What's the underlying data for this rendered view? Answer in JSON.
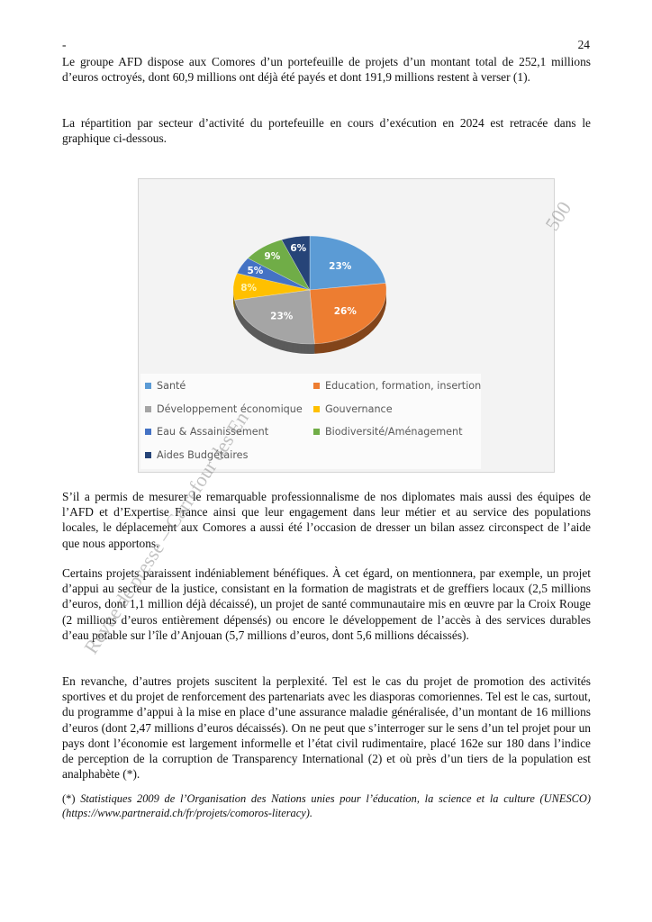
{
  "header": {
    "dash": "-",
    "page_number": "24"
  },
  "paragraphs": [
    "Le groupe AFD dispose aux Comores d’un portefeuille de projets d’un montant total de 252,1 millions d’euros octroyés, dont 60,9 millions ont déjà été payés et dont 191,9 millions restent à verser (1).",
    "La répartition par secteur d’activité du portefeuille en cours d’exécution en 2024 est retracée dans le graphique ci-dessous.",
    "S’il a permis de mesurer le remarquable professionnalisme de nos diplomates mais aussi des équipes de l’AFD et d’Expertise France ainsi que leur engagement dans leur métier et au service des populations locales, le déplacement aux Comores a aussi été l’occasion de dresser un bilan assez circonspect de l’aide que nous apportons.",
    "Certains projets paraissent indéniablement bénéfiques. À cet égard, on mentionnera, par exemple, un projet d’appui au secteur de la justice, consistant en la formation de magistrats et de greffiers locaux (2,5 millions d’euros, dont 1,1 million déjà décaissé), un projet de santé communautaire mis en œuvre par la Croix Rouge (2 millions d’euros entièrement dépensés) ou encore le développement de l’accès à des services durables d’eau potable sur l’île d’Anjouan (5,7 millions d’euros, dont 5,6 millions décaissés).",
    "En revanche, d’autres projets suscitent la perplexité. Tel est le cas du projet de promotion des activités sportives et du projet de renforcement des partenariats avec les diasporas comoriennes. Tel est le cas, surtout, du programme d’appui à la mise en place d’une assurance maladie généralisée, d’un montant de 16 millions d’euros (dont 2,47 millions d’euros décaissés). On ne peut que s’interroger sur le sens d’un tel projet pour un pays dont l’économie est largement informelle et l’état civil rudimentaire, placé 162e sur 180 dans l’indice de perception de la corruption de Transparency International (2) et où près d’un tiers de la population est analphabète (*)."
  ],
  "footnote": {
    "marker": "(*)",
    "text": "Statistiques 2009 de l’Organisation des Nations unies pour l’éducation, la science et la culture (UNESCO) (https://www.partneraid.ch/fr/projets/comoros-literacy)."
  },
  "watermark": {
    "text": "Revue de presse – Carrefour des En",
    "corner_text": "500"
  },
  "chart_data": {
    "type": "pie",
    "style": "3d",
    "legend_placement": "bottom",
    "categories": [
      "Santé",
      "Education, formation, insertion",
      "Développement économique",
      "Gouvernance",
      "Eau & Assainissement",
      "Biodiversité/Aménagement",
      "Aides Budgétaires"
    ],
    "values": [
      23,
      26,
      23,
      8,
      5,
      9,
      6
    ],
    "data_labels": [
      "23%",
      "26%",
      "23%",
      "8%",
      "5%",
      "9%",
      "6%"
    ],
    "colors": [
      "#5B9BD5",
      "#ED7D31",
      "#A5A5A5",
      "#FFC000",
      "#4472C4",
      "#70AD47",
      "#264478"
    ]
  }
}
